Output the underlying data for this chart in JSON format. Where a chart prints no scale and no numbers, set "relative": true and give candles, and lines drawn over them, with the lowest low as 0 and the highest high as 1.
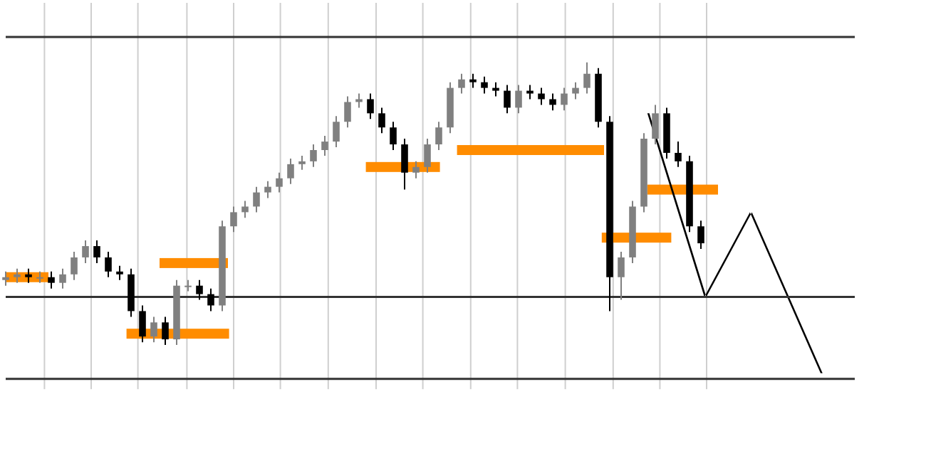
{
  "chart_data": {
    "type": "candlestick",
    "relative": true,
    "legend": false,
    "categories": [
      null,
      null,
      null,
      null,
      null,
      null,
      null,
      null,
      null,
      null,
      null,
      null,
      null,
      null,
      null,
      null,
      null,
      null,
      null,
      null,
      null,
      null,
      null,
      null,
      null,
      null,
      null,
      null,
      null,
      null,
      null,
      null,
      null,
      null,
      null,
      null,
      null,
      null,
      null,
      null,
      null,
      null,
      null,
      null,
      null,
      null,
      null,
      null,
      null,
      null,
      null,
      null,
      null,
      null,
      null,
      null,
      null,
      null,
      null,
      null,
      null,
      null
    ],
    "colors": [
      "#808080",
      "#808080",
      "#000000",
      "#808080",
      "#000000",
      "#808080",
      "#808080",
      "#808080",
      "#000000",
      "#000000",
      "#000000",
      "#000000",
      "#000000",
      "#808080",
      "#000000",
      "#808080",
      "#808080",
      "#000000",
      "#000000",
      "#808080",
      "#808080",
      "#808080",
      "#808080",
      "#808080",
      "#808080",
      "#808080",
      "#808080",
      "#808080",
      "#808080",
      "#808080",
      "#808080",
      "#808080",
      "#000000",
      "#000000",
      "#000000",
      "#000000",
      "#808080",
      "#808080",
      "#808080",
      "#808080",
      "#808080",
      "#000000",
      "#000000",
      "#000000",
      "#000000",
      "#808080",
      "#000000",
      "#000000",
      "#000000",
      "#808080",
      "#808080",
      "#808080",
      "#000000",
      "#000000",
      "#808080",
      "#808080",
      "#808080",
      "#808080",
      "#000000",
      "#000000",
      "#000000",
      "#000000"
    ],
    "ohlc": [
      [
        0.23,
        0.26,
        0.21,
        0.24
      ],
      [
        0.24,
        0.27,
        0.22,
        0.25
      ],
      [
        0.25,
        0.27,
        0.22,
        0.24
      ],
      [
        0.24,
        0.26,
        0.22,
        0.24
      ],
      [
        0.24,
        0.26,
        0.2,
        0.22
      ],
      [
        0.22,
        0.27,
        0.2,
        0.25
      ],
      [
        0.25,
        0.33,
        0.23,
        0.31
      ],
      [
        0.31,
        0.37,
        0.29,
        0.35
      ],
      [
        0.35,
        0.37,
        0.29,
        0.31
      ],
      [
        0.31,
        0.33,
        0.24,
        0.26
      ],
      [
        0.26,
        0.28,
        0.23,
        0.25
      ],
      [
        0.25,
        0.27,
        0.1,
        0.12
      ],
      [
        0.12,
        0.14,
        0.01,
        0.03
      ],
      [
        0.03,
        0.1,
        0.01,
        0.08
      ],
      [
        0.08,
        0.1,
        0,
        0.02
      ],
      [
        0.02,
        0.23,
        0,
        0.21
      ],
      [
        0.21,
        0.23,
        0.19,
        0.21
      ],
      [
        0.21,
        0.23,
        0.16,
        0.18
      ],
      [
        0.18,
        0.2,
        0.12,
        0.14
      ],
      [
        0.14,
        0.44,
        0.12,
        0.42
      ],
      [
        0.42,
        0.49,
        0.4,
        0.47
      ],
      [
        0.47,
        0.51,
        0.45,
        0.49
      ],
      [
        0.49,
        0.56,
        0.47,
        0.54
      ],
      [
        0.54,
        0.58,
        0.52,
        0.56
      ],
      [
        0.56,
        0.61,
        0.54,
        0.59
      ],
      [
        0.59,
        0.66,
        0.57,
        0.64
      ],
      [
        0.64,
        0.67,
        0.62,
        0.65
      ],
      [
        0.65,
        0.71,
        0.63,
        0.69
      ],
      [
        0.69,
        0.74,
        0.67,
        0.72
      ],
      [
        0.72,
        0.81,
        0.7,
        0.79
      ],
      [
        0.79,
        0.88,
        0.77,
        0.86
      ],
      [
        0.86,
        0.89,
        0.84,
        0.87
      ],
      [
        0.87,
        0.89,
        0.8,
        0.82
      ],
      [
        0.82,
        0.84,
        0.75,
        0.77
      ],
      [
        0.77,
        0.79,
        0.69,
        0.71
      ],
      [
        0.71,
        0.73,
        0.55,
        0.61
      ],
      [
        0.61,
        0.65,
        0.59,
        0.63
      ],
      [
        0.63,
        0.73,
        0.61,
        0.71
      ],
      [
        0.71,
        0.79,
        0.69,
        0.77
      ],
      [
        0.77,
        0.93,
        0.75,
        0.91
      ],
      [
        0.91,
        0.96,
        0.89,
        0.94
      ],
      [
        0.94,
        0.96,
        0.91,
        0.93
      ],
      [
        0.93,
        0.95,
        0.89,
        0.91
      ],
      [
        0.91,
        0.93,
        0.88,
        0.9
      ],
      [
        0.9,
        0.92,
        0.82,
        0.84
      ],
      [
        0.84,
        0.92,
        0.82,
        0.9
      ],
      [
        0.9,
        0.92,
        0.87,
        0.89
      ],
      [
        0.89,
        0.91,
        0.85,
        0.87
      ],
      [
        0.87,
        0.89,
        0.83,
        0.85
      ],
      [
        0.85,
        0.91,
        0.83,
        0.89
      ],
      [
        0.89,
        0.93,
        0.87,
        0.91
      ],
      [
        0.91,
        1,
        0.89,
        0.96
      ],
      [
        0.96,
        0.98,
        0.77,
        0.79
      ],
      [
        0.79,
        0.81,
        0.12,
        0.24
      ],
      [
        0.24,
        0.33,
        0.16,
        0.31
      ],
      [
        0.31,
        0.51,
        0.29,
        0.49
      ],
      [
        0.49,
        0.75,
        0.47,
        0.73
      ],
      [
        0.73,
        0.85,
        0.71,
        0.82
      ],
      [
        0.82,
        0.84,
        0.66,
        0.68
      ],
      [
        0.68,
        0.72,
        0.63,
        0.65
      ],
      [
        0.65,
        0.67,
        0.4,
        0.42
      ],
      [
        0.42,
        0.44,
        0.34,
        0.36
      ]
    ],
    "ref_lines": [
      {
        "axis": "y",
        "value": 1.09,
        "color": "#333333"
      },
      {
        "axis": "y",
        "value": 0.17,
        "color": "#333333"
      },
      {
        "axis": "y",
        "value": -0.12,
        "color": "#333333"
      }
    ]
  }
}
